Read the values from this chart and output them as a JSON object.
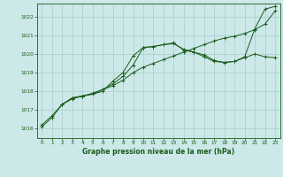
{
  "xlabel": "Graphe pression niveau de la mer (hPa)",
  "bg_color": "#cce8e8",
  "grid_color": "#aacccc",
  "line_color": "#1a5c1a",
  "text_color": "#1a5c1a",
  "xlim": [
    -0.5,
    23.5
  ],
  "ylim": [
    1015.5,
    1022.7
  ],
  "yticks": [
    1016,
    1017,
    1018,
    1019,
    1020,
    1021,
    1022
  ],
  "xticks": [
    0,
    1,
    2,
    3,
    4,
    5,
    6,
    7,
    8,
    9,
    10,
    11,
    12,
    13,
    14,
    15,
    16,
    17,
    18,
    19,
    20,
    21,
    22,
    23
  ],
  "series1_x": [
    0,
    1,
    2,
    3,
    4,
    5,
    6,
    7,
    8,
    9,
    10,
    11,
    12,
    13,
    14,
    15,
    16,
    17,
    18,
    19,
    20,
    21,
    22,
    23
  ],
  "series1_y": [
    1016.2,
    1016.7,
    1017.3,
    1017.6,
    1017.75,
    1017.9,
    1018.1,
    1018.3,
    1018.6,
    1019.0,
    1019.3,
    1019.5,
    1019.7,
    1019.9,
    1020.1,
    1020.3,
    1020.5,
    1020.7,
    1020.85,
    1020.95,
    1021.1,
    1021.3,
    1021.6,
    1022.3
  ],
  "series2_x": [
    0,
    1,
    2,
    3,
    4,
    5,
    6,
    7,
    8,
    9,
    10,
    11,
    12,
    13,
    14,
    15,
    16,
    17,
    18,
    19,
    20,
    21,
    22,
    23
  ],
  "series2_y": [
    1016.1,
    1016.6,
    1017.3,
    1017.65,
    1017.75,
    1017.85,
    1018.0,
    1018.55,
    1019.0,
    1019.9,
    1020.35,
    1020.4,
    1020.5,
    1020.6,
    1020.2,
    1020.1,
    1019.85,
    1019.6,
    1019.55,
    1019.6,
    1019.85,
    1021.35,
    1022.4,
    1022.55
  ],
  "series3_x": [
    2,
    3,
    4,
    5,
    6,
    7,
    8,
    9,
    10,
    11,
    12,
    13,
    14,
    15,
    16,
    17,
    18,
    19,
    20,
    21,
    22,
    23
  ],
  "series3_y": [
    1017.3,
    1017.65,
    1017.75,
    1017.85,
    1018.1,
    1018.4,
    1018.8,
    1019.4,
    1020.35,
    1020.4,
    1020.5,
    1020.55,
    1020.25,
    1020.1,
    1019.95,
    1019.65,
    1019.55,
    1019.6,
    1019.8,
    1020.0,
    1019.85,
    1019.8
  ]
}
